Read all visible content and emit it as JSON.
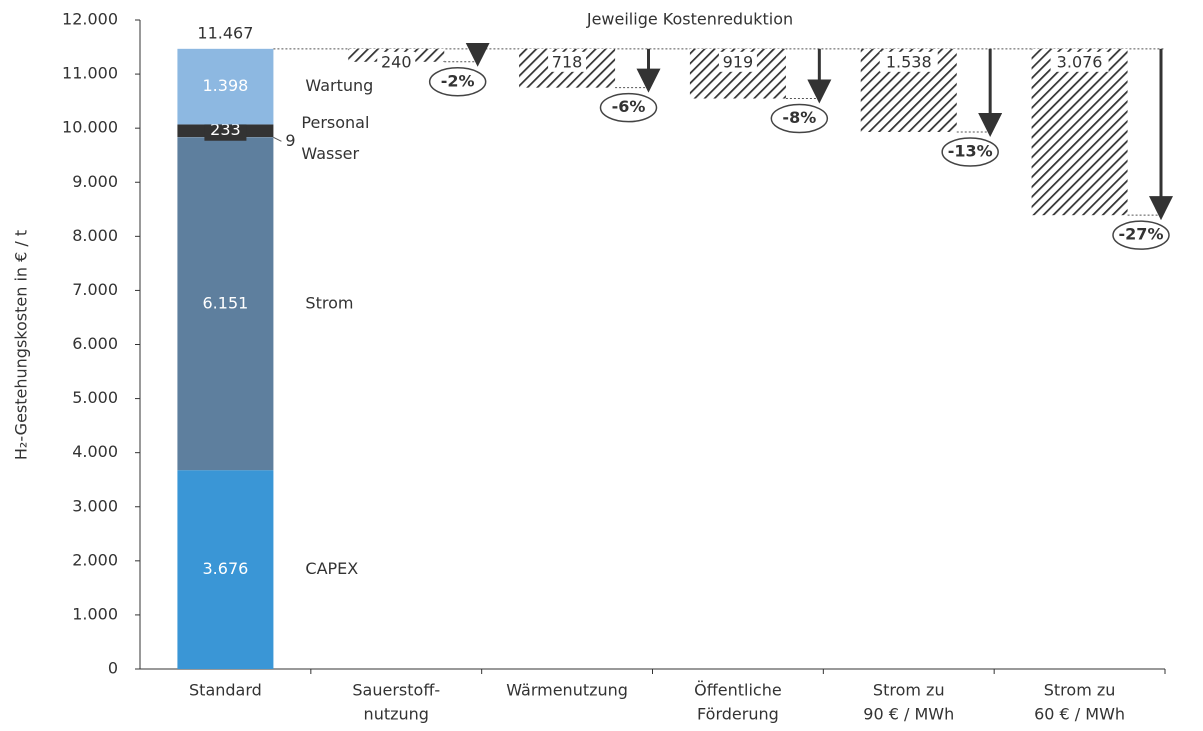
{
  "chart_data": {
    "type": "waterfall",
    "y_label": "H₂-Gestehungskosten in € / t",
    "annotation": "Jeweilige Kostenreduktion",
    "categories": [
      [
        "Standard"
      ],
      [
        "Sauerstoff-",
        "nutzung"
      ],
      [
        "Wärmenutzung"
      ],
      [
        "Öffentliche",
        "Förderung"
      ],
      [
        "Strom zu",
        "90 € / MWh"
      ],
      [
        "Strom zu",
        "60 € / MWh"
      ]
    ],
    "total": {
      "value": 11467,
      "label": "11.467"
    },
    "stack": [
      {
        "name": "CAPEX",
        "color": "#3a96d6",
        "value": 3676,
        "label": "3.676"
      },
      {
        "name": "Strom",
        "color": "#5e7f9e",
        "value": 6151,
        "label": "6.151"
      },
      {
        "name": "Wasser",
        "color": "#8aa0b4",
        "value": 9,
        "label": "9"
      },
      {
        "name": "Personal",
        "color": "#333333",
        "value": 233,
        "label": "233"
      },
      {
        "name": "Wartung",
        "color": "#8db8e1",
        "value": 1398,
        "label": "1.398"
      }
    ],
    "reductions": {
      "values": [
        240,
        718,
        919,
        1538,
        3076
      ],
      "value_labels": [
        "240",
        "718",
        "919",
        "1.538",
        "3.076"
      ],
      "percents": [
        {
          "value": -2,
          "label": "-2%"
        },
        {
          "value": -6,
          "label": "-6%"
        },
        {
          "value": -8,
          "label": "-8%"
        },
        {
          "value": -13,
          "label": "-13%"
        },
        {
          "value": -27,
          "label": "-27%"
        }
      ]
    },
    "ylim": [
      0,
      12000
    ],
    "yticks": [
      0,
      {
        "value": 1000,
        "label": "1.000"
      },
      {
        "value": 2000,
        "label": "2.000"
      },
      {
        "value": 3000,
        "label": "3.000"
      },
      {
        "value": 4000,
        "label": "4.000"
      },
      {
        "value": 5000,
        "label": "5.000"
      },
      {
        "value": 6000,
        "label": "6.000"
      },
      {
        "value": 7000,
        "label": "7.000"
      },
      {
        "value": 8000,
        "label": "8.000"
      },
      {
        "value": 9000,
        "label": "9.000"
      },
      {
        "value": 10000,
        "label": "10.000"
      },
      {
        "value": 11000,
        "label": "11.000"
      },
      {
        "value": 12000,
        "label": "12.000"
      }
    ]
  }
}
